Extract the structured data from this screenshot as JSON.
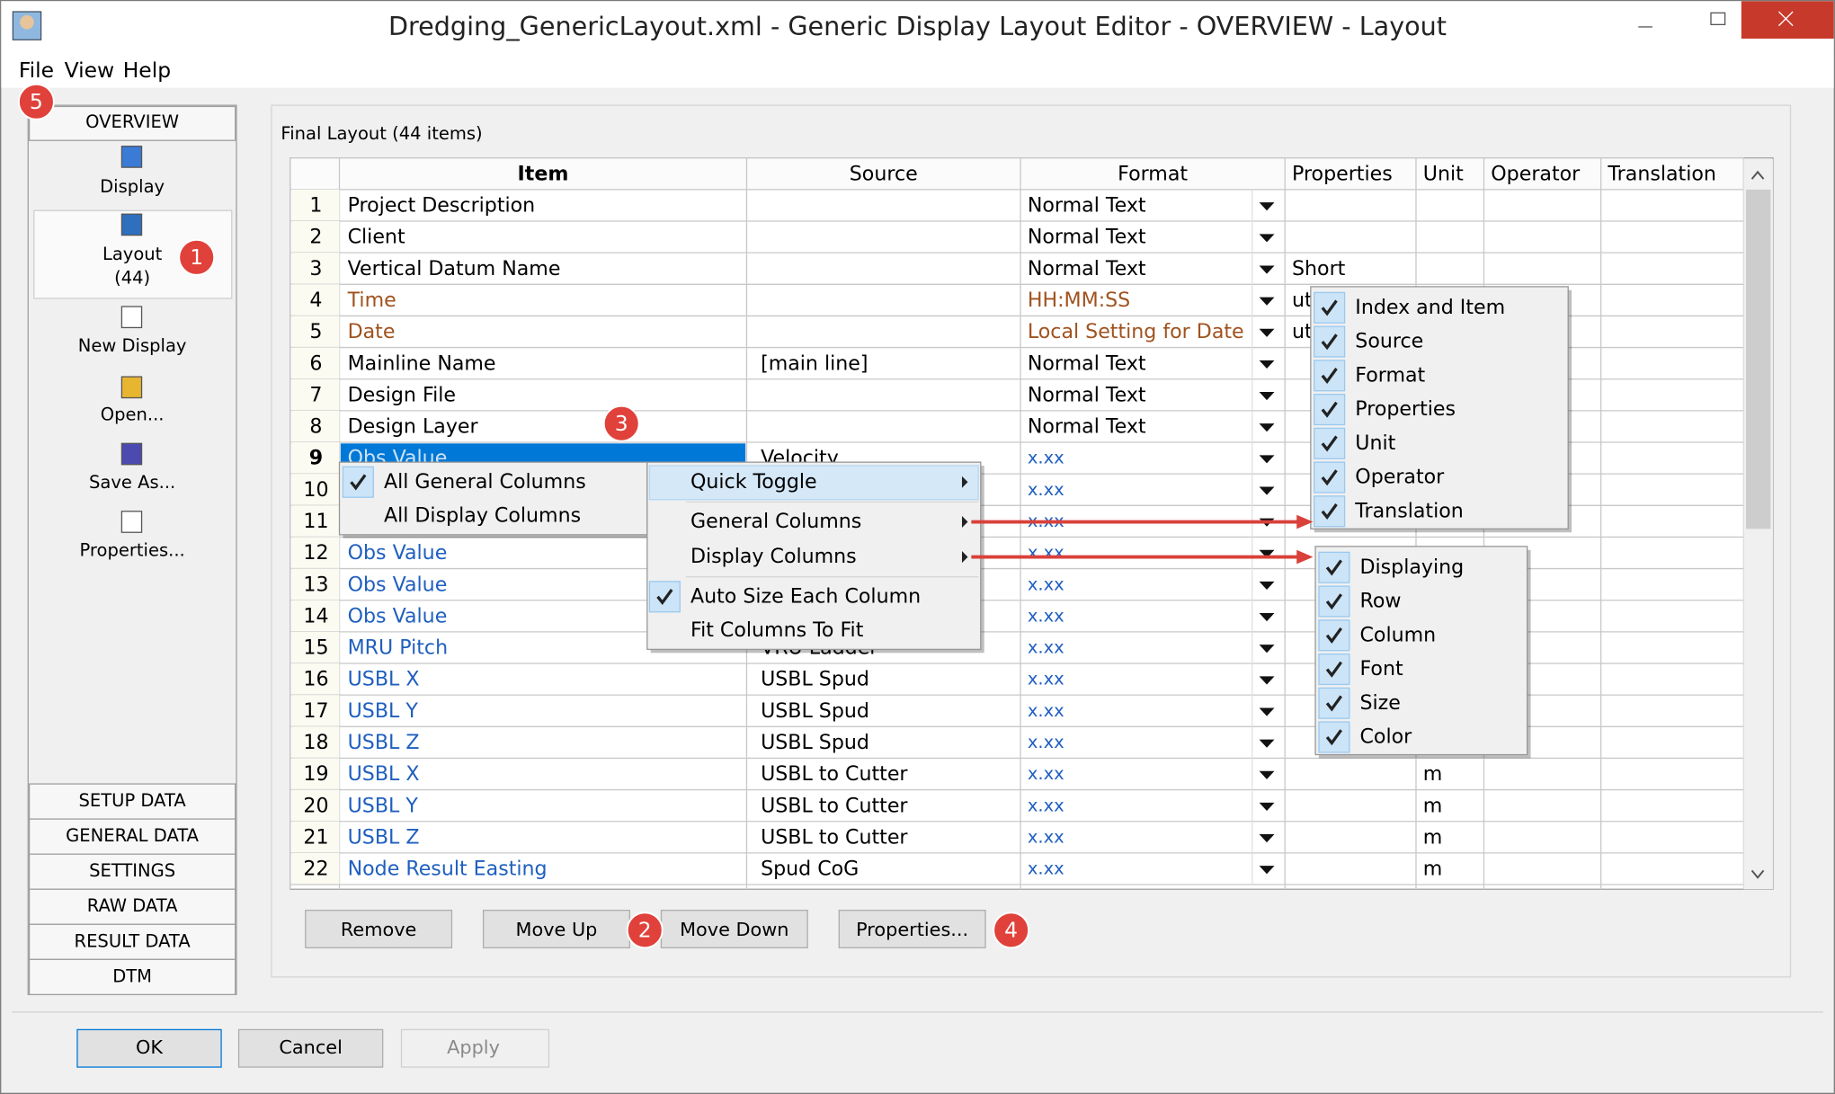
{
  "window": {
    "title": "Dredging_GenericLayout.xml - Generic Display Layout Editor -  OVERVIEW -  Layout",
    "menu": [
      "File",
      "View",
      "Help"
    ]
  },
  "sidebar": {
    "header": "OVERVIEW",
    "items": [
      {
        "label": "Display"
      },
      {
        "label": "Layout",
        "count": "(44)",
        "selected": true
      },
      {
        "label": "New Display"
      },
      {
        "label": "Open..."
      },
      {
        "label": "Save As..."
      },
      {
        "label": "Properties..."
      }
    ],
    "sections": [
      "SETUP DATA",
      "GENERAL DATA",
      "SETTINGS",
      "RAW DATA",
      "RESULT DATA",
      "DTM"
    ]
  },
  "layout": {
    "group_label": "Final Layout (44 items)",
    "columns": [
      "Item",
      "Source",
      "Format",
      "Properties",
      "Unit",
      "Operator",
      "Translation"
    ],
    "rows": [
      {
        "index": 1,
        "item": "Project Description",
        "source": null,
        "format": "Normal Text",
        "properties": null,
        "unit": null,
        "color": "#000000"
      },
      {
        "index": 2,
        "item": "Client",
        "source": null,
        "format": "Normal Text",
        "properties": null,
        "unit": null,
        "color": "#000000"
      },
      {
        "index": 3,
        "item": "Vertical Datum Name",
        "source": null,
        "format": "Normal Text",
        "properties": "Short",
        "unit": null,
        "color": "#000000"
      },
      {
        "index": 4,
        "item": "Time",
        "source": null,
        "format": "HH:MM:SS",
        "properties": "ut",
        "unit": null,
        "color": "#a0521e"
      },
      {
        "index": 5,
        "item": "Date",
        "source": null,
        "format": "Local Setting for Date",
        "properties": "ut",
        "unit": null,
        "color": "#a0521e"
      },
      {
        "index": 6,
        "item": "Mainline Name",
        "source": "[main line]",
        "format": "Normal Text",
        "properties": null,
        "unit": null,
        "color": "#000000"
      },
      {
        "index": 7,
        "item": "Design File",
        "source": null,
        "format": "Normal Text",
        "properties": null,
        "unit": null,
        "color": "#000000"
      },
      {
        "index": 8,
        "item": "Design Layer",
        "source": null,
        "format": "Normal Text",
        "properties": null,
        "unit": null,
        "color": "#000000"
      },
      {
        "index": 9,
        "item": "Obs Value",
        "source": "Velocity",
        "format": "x.xx",
        "properties": null,
        "unit": null,
        "color": "#1f5fbf",
        "selected": true
      },
      {
        "index": 10,
        "item": null,
        "source": null,
        "format": "x.xx",
        "properties": null,
        "unit": null,
        "color": "#1f5fbf"
      },
      {
        "index": 11,
        "item": null,
        "source": null,
        "format": "x.xx",
        "properties": null,
        "unit": null,
        "color": "#1f5fbf"
      },
      {
        "index": 12,
        "item": "Obs Value",
        "source": null,
        "format": "x.xx",
        "properties": null,
        "unit": null,
        "color": "#1f5fbf"
      },
      {
        "index": 13,
        "item": "Obs Value",
        "source": null,
        "format": "x.xx",
        "properties": null,
        "unit": null,
        "color": "#1f5fbf"
      },
      {
        "index": 14,
        "item": "Obs Value",
        "source": null,
        "format": "x.xx",
        "properties": null,
        "unit": null,
        "color": "#1f5fbf"
      },
      {
        "index": 15,
        "item": "MRU Pitch",
        "source": "VRU Ladder",
        "format": "x.xx",
        "properties": null,
        "unit": null,
        "color": "#1f5fbf"
      },
      {
        "index": 16,
        "item": "USBL X",
        "source": "USBL Spud",
        "format": "x.xx",
        "properties": null,
        "unit": null,
        "color": "#1f5fbf"
      },
      {
        "index": 17,
        "item": "USBL Y",
        "source": "USBL Spud",
        "format": "x.xx",
        "properties": null,
        "unit": null,
        "color": "#1f5fbf"
      },
      {
        "index": 18,
        "item": "USBL Z",
        "source": "USBL Spud",
        "format": "x.xx",
        "properties": null,
        "unit": null,
        "color": "#1f5fbf"
      },
      {
        "index": 19,
        "item": "USBL X",
        "source": "USBL to Cutter",
        "format": "x.xx",
        "properties": null,
        "unit": "m",
        "color": "#1f5fbf"
      },
      {
        "index": 20,
        "item": "USBL Y",
        "source": "USBL to Cutter",
        "format": "x.xx",
        "properties": null,
        "unit": "m",
        "color": "#1f5fbf"
      },
      {
        "index": 21,
        "item": "USBL Z",
        "source": "USBL to Cutter",
        "format": "x.xx",
        "properties": null,
        "unit": "m",
        "color": "#1f5fbf"
      },
      {
        "index": 22,
        "item": "Node Result Easting",
        "source": "Spud CoG",
        "format": "x.xx",
        "properties": null,
        "unit": "m",
        "color": "#1f5fbf"
      }
    ],
    "buttons": [
      "Remove",
      "Move Up",
      "Move Down",
      "Properties..."
    ]
  },
  "context_menu": {
    "items": [
      {
        "label": "Quick Toggle",
        "submenu": true,
        "highlighted": true
      },
      {
        "label": "General Columns",
        "submenu": true
      },
      {
        "label": "Display Columns",
        "submenu": true
      },
      {
        "label": "Auto Size Each Column",
        "checked": true
      },
      {
        "label": "Fit Columns To Fit",
        "checked": false
      }
    ],
    "quick_toggle": [
      {
        "label": "All General Columns",
        "checked": true
      },
      {
        "label": "All Display Columns",
        "checked": false
      }
    ]
  },
  "general_columns_menu": [
    {
      "label": "Index and Item",
      "checked": true
    },
    {
      "label": "Source",
      "checked": true
    },
    {
      "label": "Format",
      "checked": true
    },
    {
      "label": "Properties",
      "checked": true
    },
    {
      "label": "Unit",
      "checked": true
    },
    {
      "label": "Operator",
      "checked": true
    },
    {
      "label": "Translation",
      "checked": true
    }
  ],
  "display_columns_menu": [
    {
      "label": "Displaying",
      "checked": true
    },
    {
      "label": "Row",
      "checked": true
    },
    {
      "label": "Column",
      "checked": true
    },
    {
      "label": "Font",
      "checked": true
    },
    {
      "label": "Size",
      "checked": true
    },
    {
      "label": "Color",
      "checked": true
    }
  ],
  "dialog_buttons": [
    {
      "label": "OK",
      "enabled": true,
      "default": true
    },
    {
      "label": "Cancel",
      "enabled": true
    },
    {
      "label": "Apply",
      "enabled": false
    }
  ],
  "callouts": [
    1,
    2,
    3,
    4,
    5
  ]
}
